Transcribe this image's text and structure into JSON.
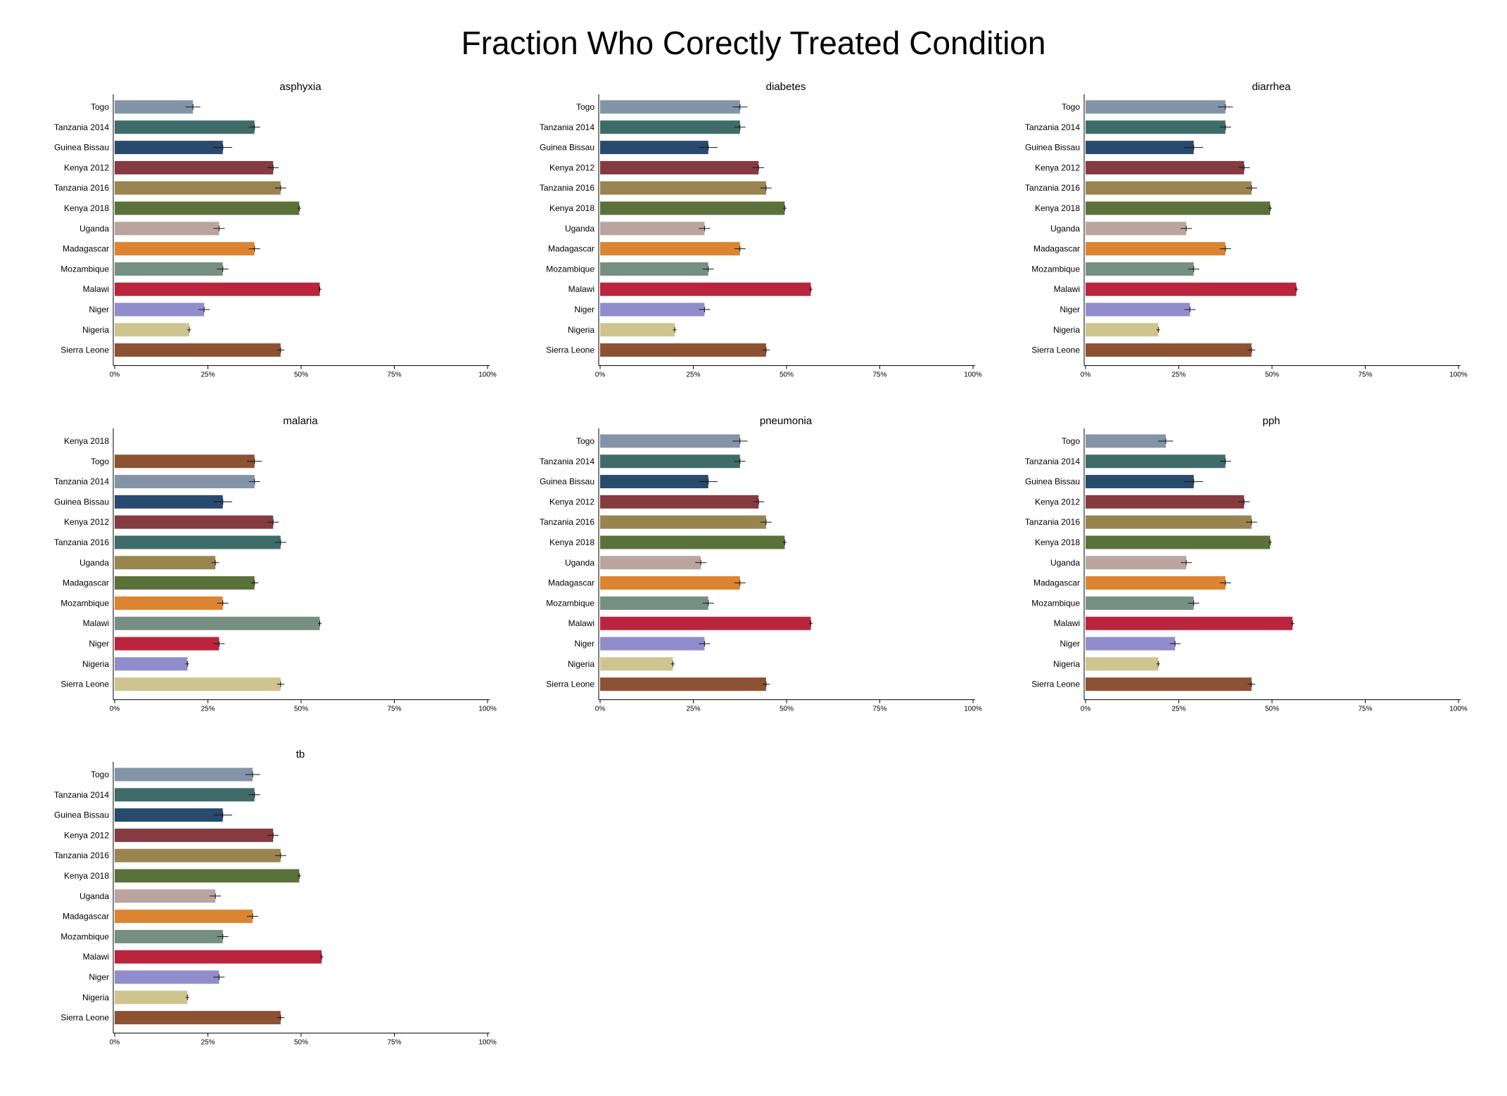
{
  "title": "Fraction Who Corectly Treated Condition",
  "chart_data": [
    {
      "type": "bar",
      "orientation": "horizontal",
      "title": "asphyxia",
      "xlim": [
        0,
        100
      ],
      "ticks": [
        "0%",
        "25%",
        "50%",
        "75%",
        "100%"
      ],
      "categories": [
        "Togo",
        "Tanzania 2014",
        "Guinea Bissau",
        "Kenya 2012",
        "Tanzania 2016",
        "Kenya 2018",
        "Uganda",
        "Madagascar",
        "Mozambique",
        "Malawi",
        "Niger",
        "Nigeria",
        "Sierra Leone"
      ],
      "values": [
        21.0,
        37.5,
        29.0,
        42.5,
        44.5,
        49.5,
        28.0,
        37.5,
        29.0,
        55.0,
        24.0,
        20.0,
        44.5
      ],
      "errors": [
        2.0,
        1.5,
        2.5,
        1.5,
        1.5,
        0.5,
        1.5,
        1.5,
        1.5,
        0.5,
        1.5,
        0.5,
        1.0
      ],
      "colors": [
        "#8394A9",
        "#3F6C68",
        "#284A6E",
        "#853B40",
        "#9A8450",
        "#5A7239",
        "#BBA49E",
        "#DB8533",
        "#768F83",
        "#BA253E",
        "#918DCC",
        "#CDC58D",
        "#8C5232"
      ]
    },
    {
      "type": "bar",
      "orientation": "horizontal",
      "title": "diabetes",
      "xlim": [
        0,
        100
      ],
      "ticks": [
        "0%",
        "25%",
        "50%",
        "75%",
        "100%"
      ],
      "categories": [
        "Togo",
        "Tanzania 2014",
        "Guinea Bissau",
        "Kenya 2012",
        "Tanzania 2016",
        "Kenya 2018",
        "Uganda",
        "Madagascar",
        "Mozambique",
        "Malawi",
        "Niger",
        "Nigeria",
        "Sierra Leone"
      ],
      "values": [
        37.5,
        37.5,
        29.0,
        42.5,
        44.5,
        49.5,
        28.0,
        37.5,
        29.0,
        56.5,
        28.0,
        20.0,
        44.5
      ],
      "errors": [
        2.0,
        1.5,
        2.5,
        1.5,
        1.5,
        0.5,
        1.5,
        1.5,
        1.5,
        0.5,
        1.5,
        0.5,
        1.0
      ],
      "colors": [
        "#8394A9",
        "#3F6C68",
        "#284A6E",
        "#853B40",
        "#9A8450",
        "#5A7239",
        "#BBA49E",
        "#DB8533",
        "#768F83",
        "#BA253E",
        "#918DCC",
        "#CDC58D",
        "#8C5232"
      ]
    },
    {
      "type": "bar",
      "orientation": "horizontal",
      "title": "diarrhea",
      "xlim": [
        0,
        100
      ],
      "ticks": [
        "0%",
        "25%",
        "50%",
        "75%",
        "100%"
      ],
      "categories": [
        "Togo",
        "Tanzania 2014",
        "Guinea Bissau",
        "Kenya 2012",
        "Tanzania 2016",
        "Kenya 2018",
        "Uganda",
        "Madagascar",
        "Mozambique",
        "Malawi",
        "Niger",
        "Nigeria",
        "Sierra Leone"
      ],
      "values": [
        37.5,
        37.5,
        29.0,
        42.5,
        44.5,
        49.5,
        27.0,
        37.5,
        29.0,
        56.5,
        28.0,
        19.5,
        44.5
      ],
      "errors": [
        2.0,
        1.5,
        2.5,
        1.5,
        1.5,
        0.5,
        1.5,
        1.5,
        1.5,
        0.5,
        1.5,
        0.5,
        1.0
      ],
      "colors": [
        "#8394A9",
        "#3F6C68",
        "#284A6E",
        "#853B40",
        "#9A8450",
        "#5A7239",
        "#BBA49E",
        "#DB8533",
        "#768F83",
        "#BA253E",
        "#918DCC",
        "#CDC58D",
        "#8C5232"
      ]
    },
    {
      "type": "bar",
      "orientation": "horizontal",
      "title": "malaria",
      "xlim": [
        0,
        100
      ],
      "ticks": [
        "0%",
        "25%",
        "50%",
        "75%",
        "100%"
      ],
      "categories": [
        "Kenya 2018",
        "Togo",
        "Tanzania 2014",
        "Guinea Bissau",
        "Kenya 2012",
        "Tanzania 2016",
        "Uganda",
        "Madagascar",
        "Mozambique",
        "Malawi",
        "Niger",
        "Nigeria",
        "Sierra Leone"
      ],
      "values": [
        null,
        37.5,
        37.5,
        29.0,
        42.5,
        44.5,
        27.0,
        37.5,
        29.0,
        55.0,
        28.0,
        19.5,
        44.5
      ],
      "errors": [
        null,
        2.0,
        1.5,
        2.5,
        1.5,
        1.5,
        1.0,
        1.0,
        1.5,
        0.5,
        1.5,
        0.5,
        1.0
      ],
      "colors": [
        null,
        "#8C5232",
        "#8394A9",
        "#284A6E",
        "#853B40",
        "#3F6C68",
        "#9A8450",
        "#5A7239",
        "#DB8533",
        "#768F83",
        "#BA253E",
        "#918DCC",
        "#CDC58D"
      ]
    },
    {
      "type": "bar",
      "orientation": "horizontal",
      "title": "pneumonia",
      "xlim": [
        0,
        100
      ],
      "ticks": [
        "0%",
        "25%",
        "50%",
        "75%",
        "100%"
      ],
      "categories": [
        "Togo",
        "Tanzania 2014",
        "Guinea Bissau",
        "Kenya 2012",
        "Tanzania 2016",
        "Kenya 2018",
        "Uganda",
        "Madagascar",
        "Mozambique",
        "Malawi",
        "Niger",
        "Nigeria",
        "Sierra Leone"
      ],
      "values": [
        37.5,
        37.5,
        29.0,
        42.5,
        44.5,
        49.5,
        27.0,
        37.5,
        29.0,
        56.5,
        28.0,
        19.5,
        44.5
      ],
      "errors": [
        2.0,
        1.5,
        2.5,
        1.5,
        1.5,
        0.5,
        1.5,
        1.5,
        1.5,
        0.5,
        1.5,
        0.5,
        1.0
      ],
      "colors": [
        "#8394A9",
        "#3F6C68",
        "#284A6E",
        "#853B40",
        "#9A8450",
        "#5A7239",
        "#BBA49E",
        "#DB8533",
        "#768F83",
        "#BA253E",
        "#918DCC",
        "#CDC58D",
        "#8C5232"
      ]
    },
    {
      "type": "bar",
      "orientation": "horizontal",
      "title": "pph",
      "xlim": [
        0,
        100
      ],
      "ticks": [
        "0%",
        "25%",
        "50%",
        "75%",
        "100%"
      ],
      "categories": [
        "Togo",
        "Tanzania 2014",
        "Guinea Bissau",
        "Kenya 2012",
        "Tanzania 2016",
        "Kenya 2018",
        "Uganda",
        "Madagascar",
        "Mozambique",
        "Malawi",
        "Niger",
        "Nigeria",
        "Sierra Leone"
      ],
      "values": [
        21.5,
        37.5,
        29.0,
        42.5,
        44.5,
        49.5,
        27.0,
        37.5,
        29.0,
        55.5,
        24.0,
        19.5,
        44.5
      ],
      "errors": [
        2.0,
        1.5,
        2.5,
        1.5,
        1.5,
        0.5,
        1.5,
        1.5,
        1.5,
        0.5,
        1.5,
        0.5,
        1.0
      ],
      "colors": [
        "#8394A9",
        "#3F6C68",
        "#284A6E",
        "#853B40",
        "#9A8450",
        "#5A7239",
        "#BBA49E",
        "#DB8533",
        "#768F83",
        "#BA253E",
        "#918DCC",
        "#CDC58D",
        "#8C5232"
      ]
    },
    {
      "type": "bar",
      "orientation": "horizontal",
      "title": "tb",
      "xlim": [
        0,
        100
      ],
      "ticks": [
        "0%",
        "25%",
        "50%",
        "75%",
        "100%"
      ],
      "categories": [
        "Togo",
        "Tanzania 2014",
        "Guinea Bissau",
        "Kenya 2012",
        "Tanzania 2016",
        "Kenya 2018",
        "Uganda",
        "Madagascar",
        "Mozambique",
        "Malawi",
        "Niger",
        "Nigeria",
        "Sierra Leone"
      ],
      "values": [
        37.0,
        37.5,
        29.0,
        42.5,
        44.5,
        49.5,
        27.0,
        37.0,
        29.0,
        55.5,
        28.0,
        19.5,
        44.5
      ],
      "errors": [
        2.0,
        1.5,
        2.5,
        1.5,
        1.5,
        0.5,
        1.5,
        1.5,
        1.5,
        0.5,
        1.5,
        0.5,
        1.0
      ],
      "colors": [
        "#8394A9",
        "#3F6C68",
        "#284A6E",
        "#853B40",
        "#9A8450",
        "#5A7239",
        "#BBA49E",
        "#DB8533",
        "#768F83",
        "#BA253E",
        "#918DCC",
        "#CDC58D",
        "#8C5232"
      ]
    }
  ]
}
